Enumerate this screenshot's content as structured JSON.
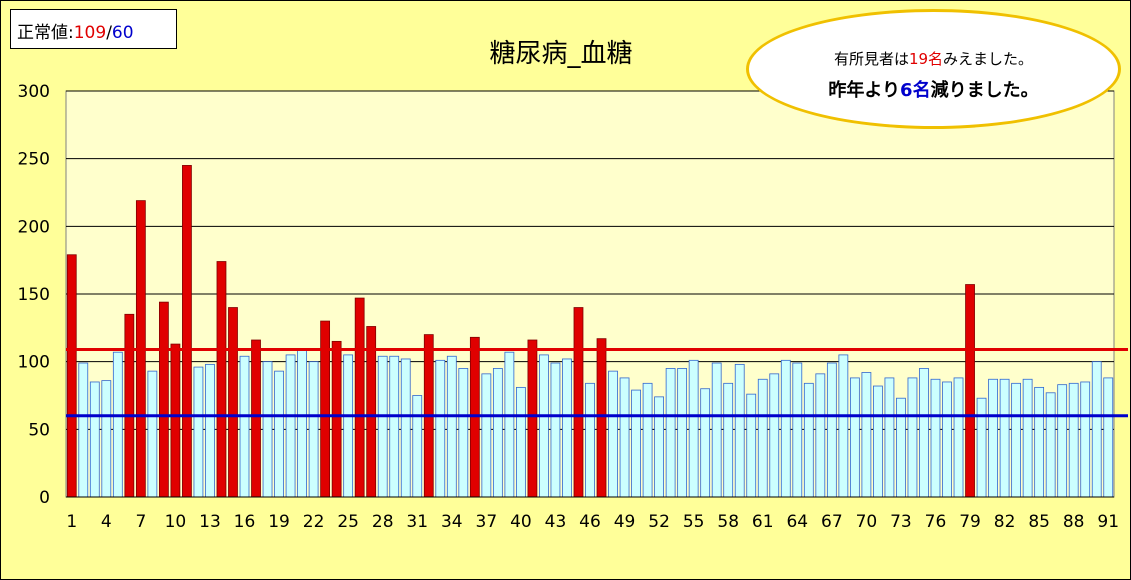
{
  "normal_value": {
    "label": "正常値:",
    "high": "109",
    "sep": "/",
    "low": "60"
  },
  "note": {
    "line1_pre": "有所見者は",
    "line1_num": "19名",
    "line1_post": "みえました。",
    "line2_pre": "昨年より",
    "line2_num": "6名",
    "line2_post": "減りました。"
  },
  "colors": {
    "normal_bar": "#ccffff",
    "abnormal_bar": "#e00000",
    "upper_line": "#e00000",
    "lower_line": "#0000cc",
    "plot_bg": "#ffffcc",
    "chart_bg": "#ffff99"
  },
  "chart_data": {
    "type": "bar",
    "title": "糖尿病_血糖",
    "xlabel": "",
    "ylabel": "",
    "ylim": [
      0,
      300
    ],
    "yticks": [
      0,
      50,
      100,
      150,
      200,
      250,
      300
    ],
    "ytick_labels": [
      "0",
      "50",
      "100",
      "150",
      "200",
      "250",
      "300"
    ],
    "xtick_labels": [
      "1",
      "4",
      "7",
      "10",
      "13",
      "16",
      "19",
      "22",
      "25",
      "28",
      "31",
      "34",
      "37",
      "40",
      "43",
      "46",
      "49",
      "52",
      "55",
      "58",
      "61",
      "64",
      "67",
      "70",
      "73",
      "76",
      "79",
      "82",
      "85",
      "88",
      "91"
    ],
    "grid": true,
    "reference_lines": [
      {
        "value": 109,
        "color": "#e00000"
      },
      {
        "value": 60,
        "color": "#0000cc"
      }
    ],
    "categories": [
      1,
      2,
      3,
      4,
      5,
      6,
      7,
      8,
      9,
      10,
      11,
      12,
      13,
      14,
      15,
      16,
      17,
      18,
      19,
      20,
      21,
      22,
      23,
      24,
      25,
      26,
      27,
      28,
      29,
      30,
      31,
      32,
      33,
      34,
      35,
      36,
      37,
      38,
      39,
      40,
      41,
      42,
      43,
      44,
      45,
      46,
      47,
      48,
      49,
      50,
      51,
      52,
      53,
      54,
      55,
      56,
      57,
      58,
      59,
      60,
      61,
      62,
      63,
      64,
      65,
      66,
      67,
      68,
      69,
      70,
      71,
      72,
      73,
      74,
      75,
      76,
      77,
      78,
      79,
      80,
      81,
      82,
      83,
      84,
      85,
      86,
      87,
      88,
      89,
      90,
      91
    ],
    "values": [
      179,
      99,
      85,
      86,
      107,
      135,
      219,
      93,
      144,
      113,
      245,
      96,
      98,
      174,
      140,
      104,
      116,
      100,
      93,
      105,
      109,
      100,
      130,
      115,
      105,
      147,
      126,
      104,
      104,
      102,
      75,
      120,
      101,
      104,
      95,
      118,
      91,
      95,
      107,
      81,
      116,
      105,
      99,
      102,
      140,
      84,
      117,
      93,
      88,
      79,
      84,
      74,
      95,
      95,
      101,
      80,
      99,
      84,
      98,
      76,
      87,
      91,
      101,
      99,
      84,
      91,
      99,
      105,
      88,
      92,
      82,
      88,
      73,
      88,
      95,
      87,
      85,
      88,
      157,
      73,
      87,
      87,
      84,
      87,
      81,
      77,
      83,
      84,
      85,
      100,
      88
    ],
    "abnormal": [
      1,
      0,
      0,
      0,
      0,
      1,
      1,
      0,
      1,
      1,
      1,
      0,
      0,
      1,
      1,
      0,
      1,
      0,
      0,
      0,
      0,
      0,
      1,
      1,
      0,
      1,
      1,
      0,
      0,
      0,
      0,
      1,
      0,
      0,
      0,
      1,
      0,
      0,
      0,
      0,
      1,
      0,
      0,
      0,
      1,
      0,
      1,
      0,
      0,
      0,
      0,
      0,
      0,
      0,
      0,
      0,
      0,
      0,
      0,
      0,
      0,
      0,
      0,
      0,
      0,
      0,
      0,
      0,
      0,
      0,
      0,
      0,
      0,
      0,
      0,
      0,
      0,
      0,
      1,
      0,
      0,
      0,
      0,
      0,
      0,
      0,
      0,
      0,
      0,
      0,
      0
    ]
  }
}
